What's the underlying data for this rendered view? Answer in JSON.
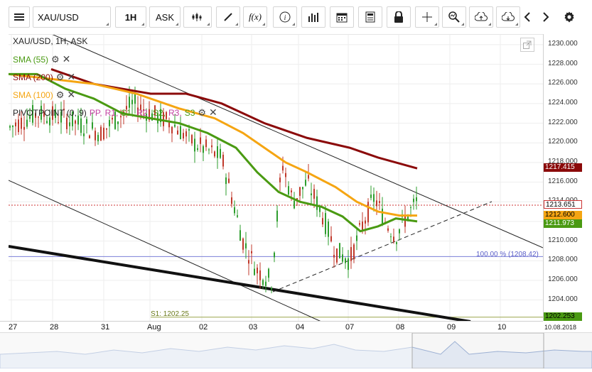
{
  "toolbar": {
    "symbol": "XAU/USD",
    "interval": "1H",
    "price_type": "ASK",
    "fx_label": "f(x)",
    "icons": [
      "menu-icon",
      "candles-icon",
      "draw-icon",
      "fx-icon",
      "info-icon",
      "bar-chart-icon",
      "calendar-icon",
      "news-icon",
      "lock-icon",
      "crosshair-icon",
      "zoom-icon",
      "upload-icon",
      "download-icon",
      "chevron-left-icon",
      "chevron-right-icon",
      "gear-icon"
    ]
  },
  "chart": {
    "title": "XAU/USD, 1H, ASK",
    "indicators": [
      {
        "label": "SMA (55)",
        "color": "#4a9a12"
      },
      {
        "label": "SMA (200)",
        "color": "#8b0a0a"
      },
      {
        "label": "SMA (100)",
        "color": "#f5a512"
      }
    ],
    "pivot": {
      "prefix": "PIVOTPOINT (0, 9)",
      "parts": [
        {
          "t": "PP,",
          "c": "#c23fa0"
        },
        {
          "t": "R1,",
          "c": "#c23fa0"
        },
        {
          "t": "S1,",
          "c": "#4a9a12"
        },
        {
          "t": "R2,",
          "c": "#c23fa0"
        },
        {
          "t": "S2,",
          "c": "#4a9a12"
        },
        {
          "t": "R3,",
          "c": "#c23fa0"
        },
        {
          "t": "S3",
          "c": "#4a9a12"
        }
      ]
    },
    "fib_label": "100.00 % (1208.42)",
    "s1_label": "S1: 1202.25"
  },
  "chart_data": {
    "type": "candlestick",
    "title": "XAU/USD, 1H, ASK",
    "y_ticks": [
      "1230.000",
      "1228.000",
      "1226.000",
      "1224.000",
      "1222.000",
      "1220.000",
      "1218.000",
      "1216.000",
      "1214.000",
      "1212.000",
      "1210.000",
      "1208.000",
      "1206.000",
      "1204.000"
    ],
    "ylim": [
      1201.8,
      1231.0
    ],
    "x_ticks": [
      "27",
      "28",
      "31",
      "Aug",
      "02",
      "03",
      "04",
      "07",
      "08",
      "09",
      "10"
    ],
    "date_label": "10.08.2018",
    "price_tags": [
      {
        "value": "1217.415",
        "bg": "#8b0a0a",
        "fg": "#ffffff"
      },
      {
        "value": "1213.651",
        "bg": "#ffffff",
        "fg": "#000000"
      },
      {
        "value": "1212.600",
        "bg": "#f5a512",
        "fg": "#000000"
      },
      {
        "value": "1211.973",
        "bg": "#4a9a12",
        "fg": "#ffffff"
      },
      {
        "value": "1202.253",
        "bg": "#4a9a12",
        "fg": "#000000"
      }
    ],
    "current_price": 1213.651,
    "sma_200": 1217.415,
    "sma_100": 1212.6,
    "sma_55": 1211.973,
    "fib_100": 1208.42,
    "pivot_s1": 1202.25
  }
}
